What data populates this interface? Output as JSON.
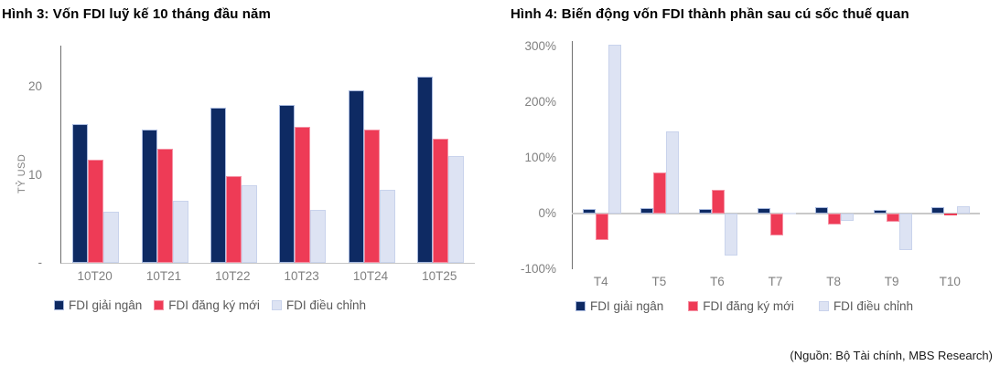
{
  "page": {
    "source_note": "(Nguồn: Bộ Tài chính, MBS Research)"
  },
  "colors": {
    "navy": "#0e2a63",
    "navy_border": "#a9bade",
    "red": "#ee3b56",
    "red_border": "#f590a3",
    "light": "#dde3f3",
    "light_border": "#c9d3ec",
    "axis_text": "#808080",
    "legend_text": "#595959",
    "title_text": "#000000",
    "axis_line": "#6f6f6f",
    "baseline": "#c9c9c9"
  },
  "chart_data": [
    {
      "type": "bar",
      "title": "Hình 3: Vốn FDI luỹ kế 10 tháng đầu năm",
      "ylabel": "TỶ USD",
      "xlabel": "",
      "categories": [
        "10T20",
        "10T21",
        "10T22",
        "10T23",
        "10T24",
        "10T25"
      ],
      "series": [
        {
          "name": "FDI giải ngân",
          "color_key": "navy",
          "values": [
            15.8,
            15.2,
            17.6,
            18.0,
            19.6,
            21.2
          ]
        },
        {
          "name": "FDI đăng ký mới",
          "color_key": "red",
          "values": [
            11.7,
            13.0,
            9.9,
            15.5,
            15.2,
            14.1
          ]
        },
        {
          "name": "FDI điều chỉnh",
          "color_key": "light",
          "values": [
            5.8,
            7.1,
            8.8,
            6.0,
            8.3,
            12.1
          ]
        }
      ],
      "yticks": [
        {
          "value": 20,
          "label": "20"
        },
        {
          "value": 10,
          "label": "10"
        },
        {
          "value": 0,
          "label": "-"
        }
      ],
      "ylim": [
        0,
        24.7
      ],
      "unit": "tỷ USD",
      "grid": false,
      "legend_position": "bottom"
    },
    {
      "type": "bar",
      "title": "Hình 4: Biến động vốn FDI thành phần sau cú sốc thuế quan",
      "ylabel": "",
      "xlabel": "",
      "categories": [
        "T4",
        "T5",
        "T6",
        "T7",
        "T8",
        "T9",
        "T10"
      ],
      "series": [
        {
          "name": "FDI giải ngân",
          "color_key": "navy",
          "values": [
            8,
            10,
            8,
            10,
            12,
            6,
            12
          ]
        },
        {
          "name": "FDI đăng ký mới",
          "color_key": "red",
          "values": [
            -47,
            74,
            42,
            -40,
            -20,
            -14,
            0
          ]
        },
        {
          "name": "FDI điều chỉnh",
          "color_key": "light",
          "values": [
            303,
            148,
            -76,
            2,
            -13,
            -66,
            13
          ]
        }
      ],
      "yticks": [
        {
          "value": 300,
          "label": "300%"
        },
        {
          "value": 200,
          "label": "200%"
        },
        {
          "value": 100,
          "label": "100%"
        },
        {
          "value": 0,
          "label": "0%"
        },
        {
          "value": -100,
          "label": "-100%"
        }
      ],
      "ylim": [
        -100,
        310
      ],
      "unit": "%",
      "grid": false,
      "legend_position": "bottom"
    }
  ]
}
